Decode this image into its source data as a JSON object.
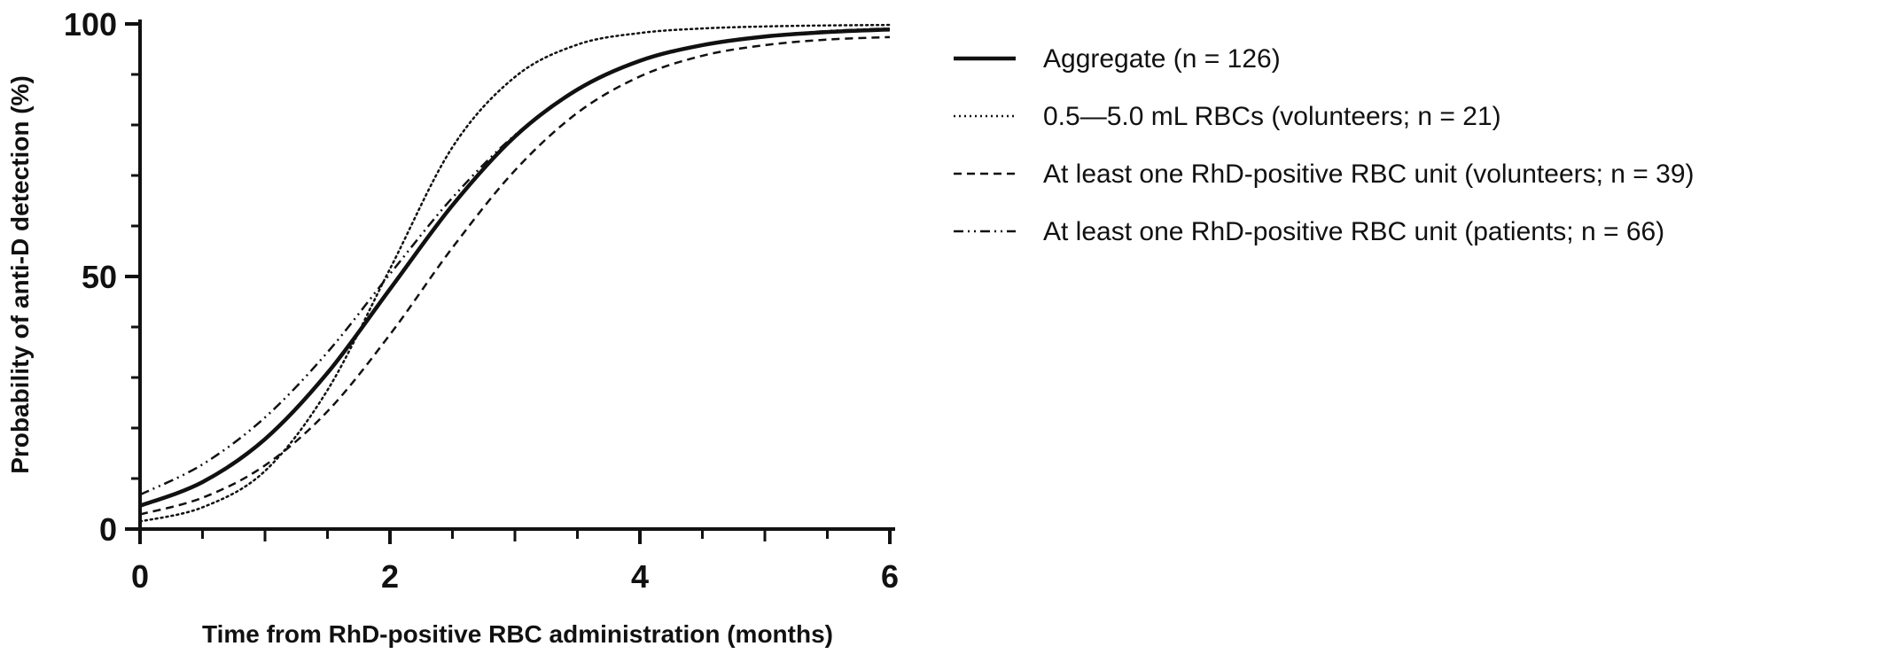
{
  "chart_data": {
    "type": "line",
    "xlabel": "Time from RhD-positive RBC administration (months)",
    "ylabel": "Probability of anti-D detection (%)",
    "xlim": [
      0,
      6
    ],
    "ylim": [
      0,
      100
    ],
    "xticks": [
      "0",
      "2",
      "4",
      "6"
    ],
    "yticks": [
      "0",
      "50",
      "100"
    ],
    "grid": false,
    "legend_position": "right",
    "x": [
      0,
      0.5,
      1,
      1.5,
      2,
      2.5,
      3,
      3.5,
      4,
      4.5,
      5,
      5.5,
      6
    ],
    "series": [
      {
        "name": "Aggregate (n = 126)",
        "style": "solid",
        "color": "#111111",
        "values": [
          4.6,
          9.3,
          17.8,
          30.9,
          47.5,
          64.1,
          77.7,
          87.0,
          92.7,
          95.8,
          97.5,
          98.4,
          98.9
        ]
      },
      {
        "name": "0.5—5.0 mL RBCs (volunteers; n = 21)",
        "style": "dotted",
        "color": "#111111",
        "values": [
          1.5,
          4.3,
          11.5,
          27.5,
          51.5,
          75.6,
          89.5,
          95.9,
          98.2,
          99.1,
          99.5,
          99.7,
          99.8
        ]
      },
      {
        "name": "At least one RhD-positive RBC unit (volunteers; n = 39)",
        "style": "dashed",
        "color": "#111111",
        "values": [
          2.9,
          6.2,
          12.6,
          23.3,
          38.5,
          55.7,
          71.0,
          82.4,
          89.6,
          93.7,
          95.8,
          96.9,
          97.4
        ]
      },
      {
        "name": "At least one RhD-positive RBC unit (patients; n = 66)",
        "style": "dashdotdot",
        "color": "#111111",
        "values": [
          6.8,
          12.8,
          22.1,
          35.0,
          50.5,
          65.6,
          78.0,
          86.9,
          92.6,
          95.8,
          97.6,
          98.6,
          99.1
        ]
      }
    ]
  }
}
